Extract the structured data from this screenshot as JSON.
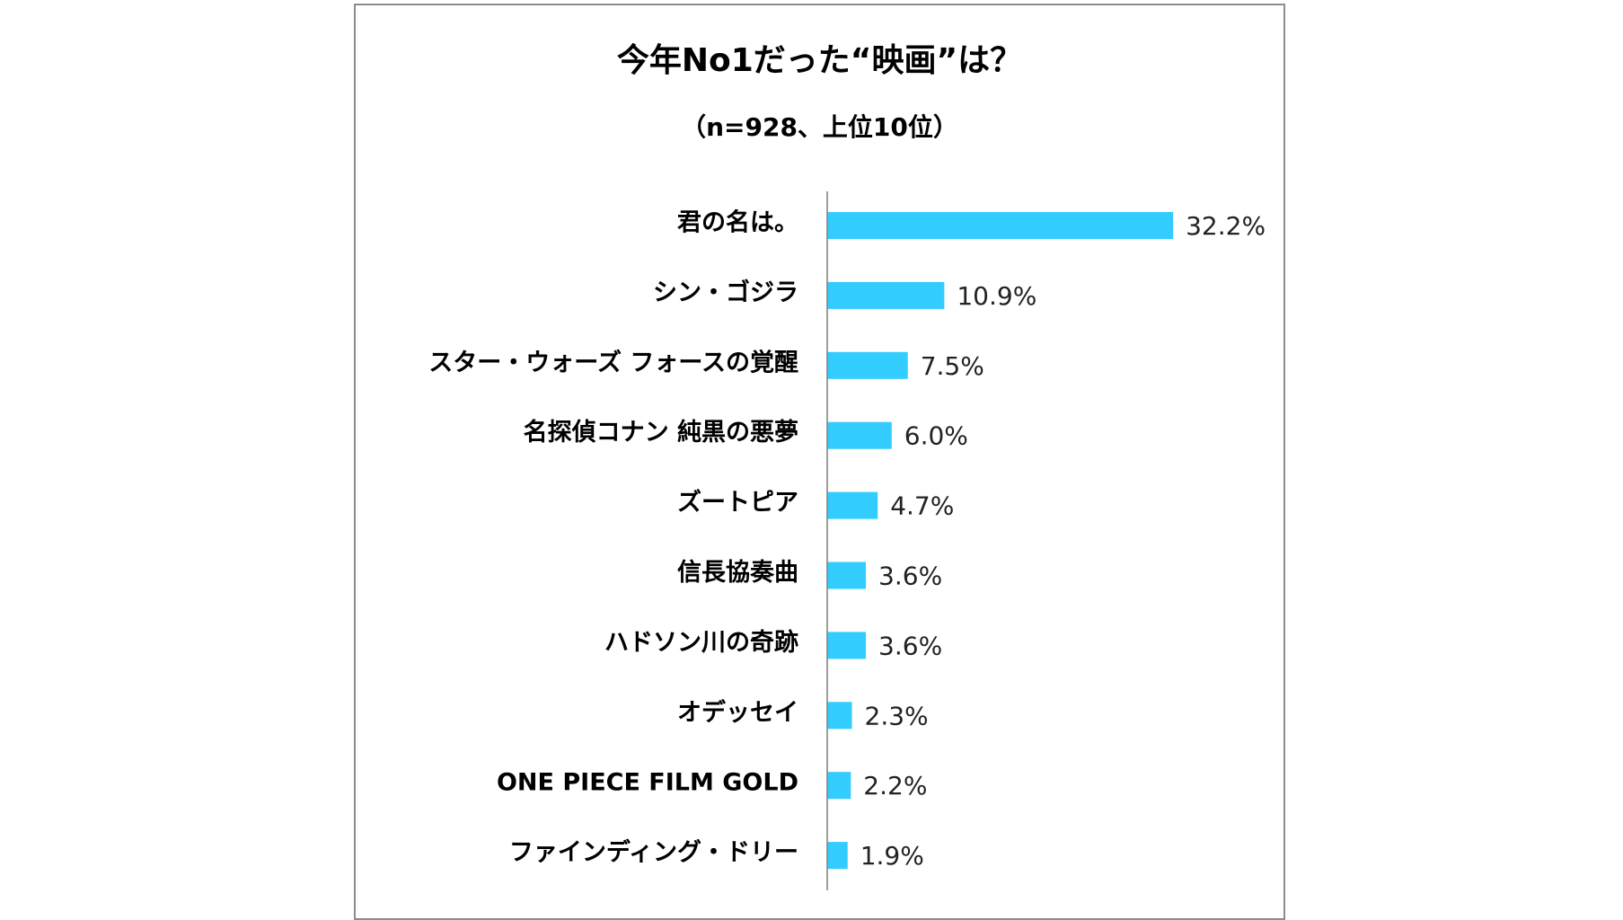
{
  "chart_data": {
    "type": "bar",
    "orientation": "horizontal",
    "title": "今年No1だった“映画”は？",
    "subtitle": "（n=928、上位10位）",
    "categories": [
      "君の名は。",
      "シン・ゴジラ",
      "スター・ウォーズ フォースの覚醒",
      "名探偵コナン 純黒の悪夢",
      "ズートピア",
      "信長協奏曲",
      "ハドソン川の奇跡",
      "オデッセイ",
      "ONE PIECE FILM GOLD",
      "ファインディング・ドリー"
    ],
    "values": [
      32.2,
      10.9,
      7.5,
      6.0,
      4.7,
      3.6,
      3.6,
      2.3,
      2.2,
      1.9
    ],
    "value_labels": [
      "32.2%",
      "10.9%",
      "7.5%",
      "6.0%",
      "4.7%",
      "3.6%",
      "3.6%",
      "2.3%",
      "2.2%",
      "1.9%"
    ],
    "unit": "%",
    "grid": false,
    "legend": "none",
    "colors": {
      "bar": "#33ccff",
      "axis": "#7f7f7f",
      "frame": "#8c8c8c"
    }
  }
}
